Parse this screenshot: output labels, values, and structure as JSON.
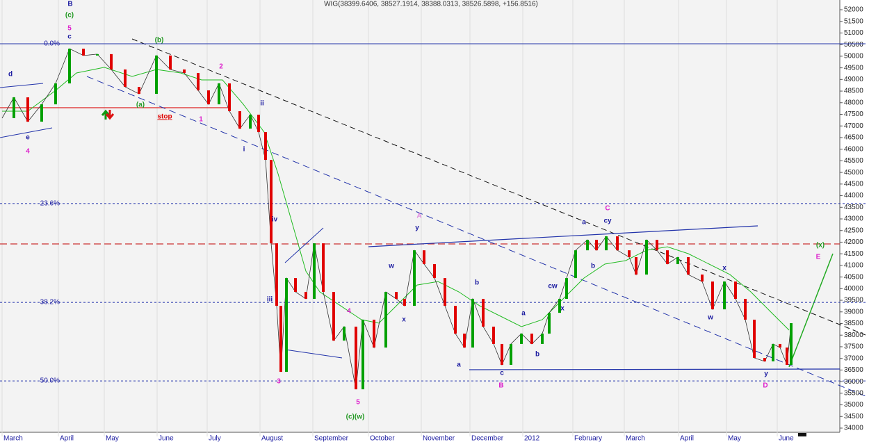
{
  "chart_data": {
    "type": "candle-line",
    "title": "WIG(38399.6406, 38527.1914, 38388.0313, 38526.5898, +156.8516)",
    "xlim": [
      0,
      311
    ],
    "xticks": [
      {
        "value": 0,
        "label": "March"
      },
      {
        "value": 20.25,
        "label": "April"
      },
      {
        "value": 36.75,
        "label": "May"
      },
      {
        "value": 55.75,
        "label": "June"
      },
      {
        "value": 73.75,
        "label": "July"
      },
      {
        "value": 92.75,
        "label": "August"
      },
      {
        "value": 111.75,
        "label": "September"
      },
      {
        "value": 131.75,
        "label": "October"
      },
      {
        "value": 150.75,
        "label": "November"
      },
      {
        "value": 168.25,
        "label": "December"
      },
      {
        "value": 187.25,
        "label": "2012"
      },
      {
        "value": 205.25,
        "label": "February"
      },
      {
        "value": 223.75,
        "label": "March"
      },
      {
        "value": 243.25,
        "label": "April"
      },
      {
        "value": 260.5,
        "label": "May"
      },
      {
        "value": 278.75,
        "label": "June"
      }
    ],
    "ylim": [
      34000,
      52000
    ],
    "yticks": [
      34000,
      34500,
      35000,
      35500,
      36000,
      36500,
      37000,
      37500,
      38000,
      38500,
      39000,
      39500,
      40000,
      40500,
      41000,
      41500,
      42000,
      42500,
      43000,
      43500,
      44000,
      44500,
      45000,
      45500,
      46000,
      46500,
      47000,
      47500,
      48000,
      48500,
      49000,
      49500,
      50000,
      50500,
      51000,
      51500,
      52000
    ],
    "series": [
      {
        "name": "WIG",
        "up_color": "#00a000",
        "down_color": "#e00000",
        "x": [
          0,
          4.25,
          9.25,
          14.25,
          19.25,
          24.25,
          29.25,
          34.25,
          39.25,
          44.25,
          49.25,
          55.5,
          60.5,
          65.5,
          70.5,
          74.25,
          78,
          81.75,
          85.5,
          89.25,
          92.25,
          94.75,
          96.75,
          98.75,
          100.25,
          102.25,
          105.5,
          109.25,
          112.25,
          115.5,
          119.25,
          123,
          127.25,
          129.75,
          133.75,
          138,
          141.75,
          144.75,
          148.25,
          151.75,
          155.5,
          159.25,
          163,
          166.25,
          169.25,
          173,
          176.75,
          179.75,
          183,
          186.75,
          190.5,
          194.25,
          196.75,
          200.5,
          203,
          206.25,
          210.5,
          213.75,
          217.25,
          221.25,
          225.5,
          228,
          231.75,
          235.5,
          239.25,
          243,
          246.75,
          251.75,
          255.5,
          259.75,
          263.75,
          267.25,
          270.5,
          274.25,
          277.25,
          279.75,
          282.25,
          283.75
        ],
        "values": [
          47335,
          48230,
          47185,
          47930,
          48830,
          50325,
          50030,
          50090,
          49430,
          48680,
          48380,
          50030,
          49430,
          49280,
          48530,
          47930,
          48830,
          47635,
          46885,
          47485,
          46735,
          45540,
          41950,
          39260,
          36420,
          40455,
          39860,
          39560,
          41950,
          39860,
          37765,
          38365,
          35670,
          38665,
          37465,
          39860,
          39560,
          39260,
          41650,
          41055,
          40455,
          39260,
          38065,
          37465,
          39560,
          38365,
          37620,
          36720,
          37620,
          38065,
          37620,
          38065,
          38960,
          39560,
          40455,
          41650,
          42100,
          41650,
          42250,
          41650,
          41355,
          40605,
          42100,
          41650,
          41055,
          41355,
          40605,
          40305,
          39110,
          40305,
          39560,
          38665,
          37020,
          36870,
          37620,
          37465,
          36720,
          38515
        ]
      },
      {
        "name": "MA",
        "color": "#22bb22",
        "x": [
          0,
          9.25,
          19.25,
          26.75,
          36.75,
          46.75,
          55.5,
          64.25,
          71.75,
          79.25,
          86.75,
          94.25,
          99.25,
          104.25,
          109.25,
          114.25,
          121.75,
          129.25,
          135.5,
          141.75,
          149.25,
          156.75,
          164.25,
          171.75,
          179.25,
          186.75,
          194.25,
          201.75,
          209.25,
          216.75,
          224.25,
          231.75,
          239.25,
          246.75,
          254.25,
          261.75,
          269.25,
          276.75,
          283
        ],
        "values": [
          47635,
          47635,
          48530,
          49280,
          49520,
          49130,
          49430,
          49280,
          48980,
          48980,
          47930,
          46735,
          44940,
          42850,
          40755,
          39860,
          39260,
          38665,
          38515,
          39260,
          40155,
          40305,
          39860,
          39260,
          38815,
          38365,
          38665,
          39560,
          40455,
          41055,
          41205,
          41650,
          41800,
          41505,
          41055,
          40605,
          39860,
          38960,
          38215
        ]
      }
    ],
    "fib_levels": [
      {
        "label": "0.0%",
        "value": 50535
      },
      {
        "label": "23.6%",
        "value": 43660
      },
      {
        "label": "38.2%",
        "value": 39410
      },
      {
        "label": "50.0%",
        "value": 36030
      }
    ],
    "annotations": [
      {
        "text": "B",
        "color": "#1a1aa0"
      },
      {
        "text": "(c)",
        "color": "#229922"
      },
      {
        "text": "5",
        "color": "#dd22cc"
      },
      {
        "text": "c",
        "color": "#1a1aa0"
      },
      {
        "text": "d",
        "color": "#1a1aa0"
      },
      {
        "text": "e",
        "color": "#1a1aa0"
      },
      {
        "text": "4",
        "color": "#dd22cc"
      },
      {
        "text": "(b)",
        "color": "#229922"
      },
      {
        "text": "2",
        "color": "#dd22cc"
      },
      {
        "text": "(a)",
        "color": "#229922"
      },
      {
        "text": "1",
        "color": "#dd22cc"
      },
      {
        "text": "stop",
        "color": "#dd0000"
      },
      {
        "text": "ii",
        "color": "#1a1aa0"
      },
      {
        "text": "i",
        "color": "#1a1aa0"
      },
      {
        "text": "iv",
        "color": "#1a1aa0"
      },
      {
        "text": "iii",
        "color": "#1a1aa0"
      },
      {
        "text": "3",
        "color": "#dd22cc"
      },
      {
        "text": "4",
        "color": "#dd22cc"
      },
      {
        "text": "5",
        "color": "#dd22cc"
      },
      {
        "text": "(c)(w)",
        "color": "#229922"
      },
      {
        "text": "A",
        "color": "#e088e0"
      },
      {
        "text": "y",
        "color": "#1a1aa0"
      },
      {
        "text": "w",
        "color": "#1a1aa0"
      },
      {
        "text": "x",
        "color": "#1a1aa0"
      },
      {
        "text": "b",
        "color": "#1a1aa0"
      },
      {
        "text": "a",
        "color": "#1a1aa0"
      },
      {
        "text": "c",
        "color": "#1a1aa0"
      },
      {
        "text": "B",
        "color": "#dd22cc"
      },
      {
        "text": "a",
        "color": "#1a1aa0"
      },
      {
        "text": "b",
        "color": "#1a1aa0"
      },
      {
        "text": "x",
        "color": "#1a1aa0"
      },
      {
        "text": "cw",
        "color": "#1a1aa0"
      },
      {
        "text": "a",
        "color": "#1a1aa0"
      },
      {
        "text": "b",
        "color": "#1a1aa0"
      },
      {
        "text": "C",
        "color": "#dd22cc"
      },
      {
        "text": "cy",
        "color": "#1a1aa0"
      },
      {
        "text": "w",
        "color": "#1a1aa0"
      },
      {
        "text": "x",
        "color": "#1a1aa0"
      },
      {
        "text": "y",
        "color": "#1a1aa0"
      },
      {
        "text": "D",
        "color": "#dd22cc"
      },
      {
        "text": "(x)",
        "color": "#229922"
      },
      {
        "text": "E",
        "color": "#dd22cc"
      }
    ]
  }
}
